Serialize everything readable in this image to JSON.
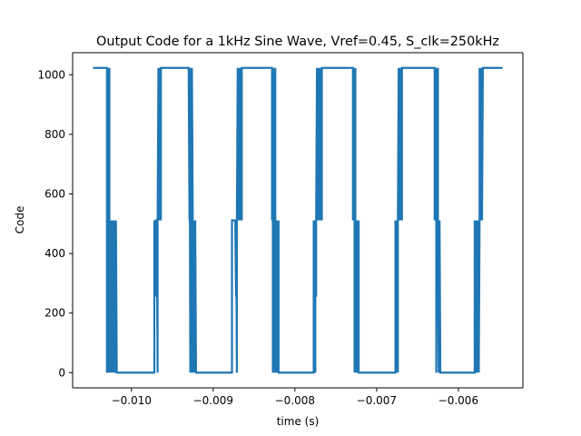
{
  "chart_data": {
    "type": "line",
    "title": "Output Code for a 1kHz Sine Wave, Vref=0.45, S_clk=250kHz",
    "xlabel": "time (s)",
    "ylabel": "Code",
    "xlim": [
      -0.01072,
      -0.00521
    ],
    "ylim": [
      -51,
      1074
    ],
    "x_ticks": [
      -0.01,
      -0.009,
      -0.008,
      -0.007,
      -0.006
    ],
    "x_tick_labels": [
      "−0.010",
      "−0.009",
      "−0.008",
      "−0.007",
      "−0.006"
    ],
    "y_ticks": [
      0,
      200,
      400,
      600,
      800,
      1000
    ],
    "y_tick_labels": [
      "0",
      "200",
      "400",
      "600",
      "800",
      "1000"
    ],
    "grid": false,
    "legend": "none",
    "line_color": "#1f77b4",
    "series": [
      {
        "values": [
          [
            -0.01047,
            1023
          ],
          [
            -0.0103,
            1023
          ],
          [
            -0.0103,
            0
          ],
          [
            -0.01029,
            1023
          ],
          [
            -0.01029,
            512
          ],
          [
            -0.01028,
            1023
          ],
          [
            -0.01028,
            0
          ],
          [
            -0.01027,
            1023
          ],
          [
            -0.01027,
            511
          ],
          [
            -0.01026,
            0
          ],
          [
            -0.01025,
            511
          ],
          [
            -0.01025,
            0
          ],
          [
            -0.01024,
            511
          ],
          [
            -0.01024,
            0
          ],
          [
            -0.01023,
            511
          ],
          [
            -0.01022,
            0
          ],
          [
            -0.01022,
            511
          ],
          [
            -0.01021,
            255
          ],
          [
            -0.01021,
            511
          ],
          [
            -0.0102,
            0
          ],
          [
            -0.0102,
            511
          ],
          [
            -0.01019,
            0
          ],
          [
            -0.01019,
            511
          ],
          [
            -0.01018,
            0
          ],
          [
            -0.00972,
            0
          ],
          [
            -0.00972,
            511
          ],
          [
            -0.00971,
            255
          ],
          [
            -0.0097,
            511
          ],
          [
            -0.00969,
            511
          ],
          [
            -0.00968,
            0
          ],
          [
            -0.00968,
            511
          ],
          [
            -0.00967,
            1023
          ],
          [
            -0.00966,
            511
          ],
          [
            -0.00966,
            1023
          ],
          [
            -0.00965,
            511
          ],
          [
            -0.00965,
            1023
          ],
          [
            -0.00964,
            511
          ],
          [
            -0.00964,
            1023
          ],
          [
            -0.0093,
            1023
          ],
          [
            -0.00929,
            511
          ],
          [
            -0.00929,
            1023
          ],
          [
            -0.00928,
            0
          ],
          [
            -0.00928,
            1023
          ],
          [
            -0.00927,
            512
          ],
          [
            -0.00927,
            1023
          ],
          [
            -0.00926,
            0
          ],
          [
            -0.00926,
            1023
          ],
          [
            -0.00925,
            511
          ],
          [
            -0.00925,
            0
          ],
          [
            -0.00924,
            511
          ],
          [
            -0.00924,
            0
          ],
          [
            -0.00923,
            511
          ],
          [
            -0.00923,
            0
          ],
          [
            -0.00922,
            511
          ],
          [
            -0.00921,
            0
          ],
          [
            -0.00877,
            0
          ],
          [
            -0.00877,
            511
          ],
          [
            -0.00873,
            511
          ],
          [
            -0.00872,
            255
          ],
          [
            -0.00872,
            511
          ],
          [
            -0.00871,
            0
          ],
          [
            -0.00871,
            511
          ],
          [
            -0.0087,
            1023
          ],
          [
            -0.00869,
            511
          ],
          [
            -0.00869,
            1023
          ],
          [
            -0.00868,
            511
          ],
          [
            -0.00868,
            1023
          ],
          [
            -0.00867,
            511
          ],
          [
            -0.00867,
            1023
          ],
          [
            -0.00866,
            511
          ],
          [
            -0.00866,
            1023
          ],
          [
            -0.00865,
            511
          ],
          [
            -0.00865,
            1023
          ],
          [
            -0.00864,
            1023
          ],
          [
            -0.00828,
            1023
          ],
          [
            -0.00828,
            511
          ],
          [
            -0.00827,
            1023
          ],
          [
            -0.00827,
            0
          ],
          [
            -0.00826,
            1023
          ],
          [
            -0.00826,
            512
          ],
          [
            -0.00825,
            767
          ],
          [
            -0.00825,
            0
          ],
          [
            -0.00824,
            1023
          ],
          [
            -0.00824,
            511
          ],
          [
            -0.00823,
            0
          ],
          [
            -0.00823,
            511
          ],
          [
            -0.00822,
            255
          ],
          [
            -0.00822,
            511
          ],
          [
            -0.00821,
            0
          ],
          [
            -0.0082,
            511
          ],
          [
            -0.0082,
            0
          ],
          [
            -0.00777,
            0
          ],
          [
            -0.00777,
            511
          ],
          [
            -0.00776,
            255
          ],
          [
            -0.00776,
            511
          ],
          [
            -0.00775,
            0
          ],
          [
            -0.00775,
            511
          ],
          [
            -0.00774,
            255
          ],
          [
            -0.00774,
            511
          ],
          [
            -0.00773,
            1023
          ],
          [
            -0.00772,
            511
          ],
          [
            -0.00772,
            1023
          ],
          [
            -0.00771,
            511
          ],
          [
            -0.00771,
            1023
          ],
          [
            -0.0077,
            511
          ],
          [
            -0.0077,
            1023
          ],
          [
            -0.00769,
            511
          ],
          [
            -0.00768,
            1023
          ],
          [
            -0.00767,
            511
          ],
          [
            -0.00767,
            1023
          ],
          [
            -0.00729,
            1023
          ],
          [
            -0.00729,
            511
          ],
          [
            -0.00728,
            1023
          ],
          [
            -0.00728,
            512
          ],
          [
            -0.00727,
            1023
          ],
          [
            -0.00727,
            0
          ],
          [
            -0.00726,
            1023
          ],
          [
            -0.00726,
            511
          ],
          [
            -0.00725,
            0
          ],
          [
            -0.00725,
            511
          ],
          [
            -0.00724,
            0
          ],
          [
            -0.00724,
            511
          ],
          [
            -0.00723,
            0
          ],
          [
            -0.00722,
            511
          ],
          [
            -0.00722,
            0
          ],
          [
            -0.00677,
            0
          ],
          [
            -0.00677,
            511
          ],
          [
            -0.00676,
            0
          ],
          [
            -0.00676,
            511
          ],
          [
            -0.00675,
            255
          ],
          [
            -0.00675,
            511
          ],
          [
            -0.00674,
            0
          ],
          [
            -0.00674,
            511
          ],
          [
            -0.00673,
            1023
          ],
          [
            -0.00672,
            511
          ],
          [
            -0.00672,
            1023
          ],
          [
            -0.00671,
            511
          ],
          [
            -0.00671,
            767
          ],
          [
            -0.0067,
            511
          ],
          [
            -0.0067,
            1023
          ],
          [
            -0.00669,
            511
          ],
          [
            -0.00669,
            1023
          ],
          [
            -0.00668,
            1023
          ],
          [
            -0.00629,
            1023
          ],
          [
            -0.00629,
            511
          ],
          [
            -0.00628,
            1023
          ],
          [
            -0.00628,
            512
          ],
          [
            -0.00627,
            1023
          ],
          [
            -0.00627,
            0
          ],
          [
            -0.00626,
            1023
          ],
          [
            -0.00626,
            511
          ],
          [
            -0.00625,
            1023
          ],
          [
            -0.00625,
            511
          ],
          [
            -0.00624,
            0
          ],
          [
            -0.00624,
            511
          ],
          [
            -0.00623,
            255
          ],
          [
            -0.00623,
            511
          ],
          [
            -0.00622,
            0
          ],
          [
            -0.00621,
            0
          ],
          [
            -0.0058,
            0
          ],
          [
            -0.0058,
            511
          ],
          [
            -0.00579,
            0
          ],
          [
            -0.00579,
            511
          ],
          [
            -0.00578,
            255
          ],
          [
            -0.00578,
            511
          ],
          [
            -0.00577,
            0
          ],
          [
            -0.00576,
            511
          ],
          [
            -0.00576,
            0
          ],
          [
            -0.00575,
            511
          ],
          [
            -0.00575,
            0
          ],
          [
            -0.00574,
            511
          ],
          [
            -0.00574,
            1023
          ],
          [
            -0.00573,
            511
          ],
          [
            -0.00572,
            1023
          ],
          [
            -0.00572,
            511
          ],
          [
            -0.00571,
            1023
          ],
          [
            -0.00571,
            511
          ],
          [
            -0.0057,
            1023
          ],
          [
            -0.00546,
            1023
          ]
        ]
      }
    ]
  }
}
